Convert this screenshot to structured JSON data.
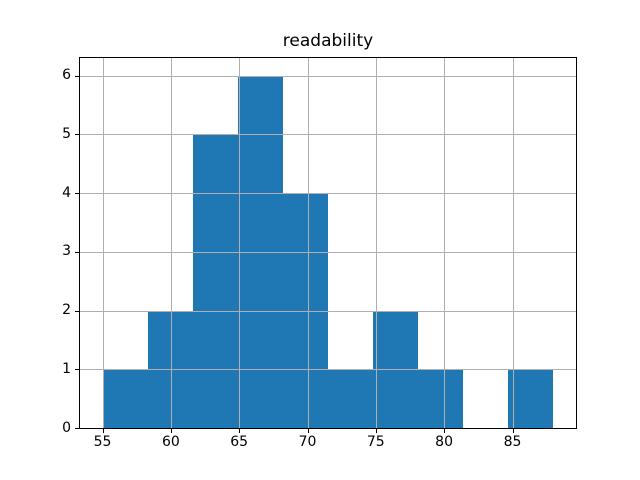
{
  "title": "readability",
  "colors": {
    "bar": "#1f77b4",
    "grid": "#b0b0b0",
    "spine": "#000000",
    "text": "#000000",
    "background": "#ffffff"
  },
  "chart_data": {
    "type": "bar",
    "subtype": "histogram",
    "title": "readability",
    "xlabel": "",
    "ylabel": "",
    "bin_edges": [
      55,
      58.3,
      61.6,
      64.9,
      68.2,
      71.5,
      74.8,
      78.1,
      81.4,
      84.7,
      88
    ],
    "counts": [
      1,
      2,
      5,
      6,
      4,
      1,
      2,
      1,
      0,
      1
    ],
    "x_ticks": [
      55,
      60,
      65,
      70,
      75,
      80,
      85
    ],
    "y_ticks": [
      0,
      1,
      2,
      3,
      4,
      5,
      6
    ],
    "xlim": [
      53.35,
      89.65
    ],
    "ylim": [
      0,
      6.3
    ],
    "grid": true,
    "grid_above_bars": true,
    "legend": "none"
  }
}
